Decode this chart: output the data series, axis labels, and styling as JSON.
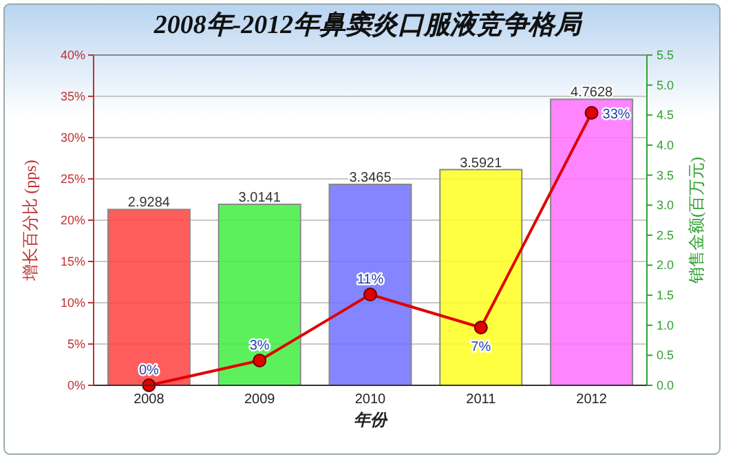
{
  "chart_data": {
    "type": "bar",
    "title": "2008年-2012年鼻窦炎口服液竞争格局",
    "xlabel": "年份",
    "ylabel": "增长百分比 (pps)",
    "y2label": "销售金额(百万元)",
    "categories": [
      "2008",
      "2009",
      "2010",
      "2011",
      "2012"
    ],
    "series": [
      {
        "axis": "y2",
        "colors": [
          "#ff4040",
          "#40ee40",
          "#7070ff",
          "#ffff20",
          "#ff70ff"
        ],
        "values": [
          2.9284,
          3.0141,
          3.3465,
          3.5921,
          4.7628
        ]
      },
      {
        "type": "line",
        "axis": "y",
        "color": "#e00000",
        "marker": "circle",
        "values": [
          0,
          3,
          11,
          7,
          33
        ],
        "value_labels": [
          "0%",
          "3%",
          "11%",
          "7%",
          "33%"
        ]
      }
    ],
    "data_labels": true,
    "ylim": [
      0,
      40
    ],
    "yticks": [
      {
        "value": 0,
        "label": "0%"
      },
      {
        "value": 5,
        "label": "5%"
      },
      {
        "value": 10,
        "label": "10%"
      },
      {
        "value": 15,
        "label": "15%"
      },
      {
        "value": 20,
        "label": "20%"
      },
      {
        "value": 25,
        "label": "25%"
      },
      {
        "value": 30,
        "label": "30%"
      },
      {
        "value": 35,
        "label": "35%"
      },
      {
        "value": 40,
        "label": "40%"
      }
    ],
    "y2lim": [
      0,
      5.5
    ],
    "y2ticks": [
      {
        "value": 0,
        "label": "0.0"
      },
      {
        "value": 0.5,
        "label": "0.5"
      },
      {
        "value": 1,
        "label": "1.0"
      },
      {
        "value": 1.5,
        "label": "1.5"
      },
      {
        "value": 2,
        "label": "2.0"
      },
      {
        "value": 2.5,
        "label": "2.5"
      },
      {
        "value": 3,
        "label": "3.0"
      },
      {
        "value": 3.5,
        "label": "3.5"
      },
      {
        "value": 4,
        "label": "4.0"
      },
      {
        "value": 4.5,
        "label": "4.5"
      },
      {
        "value": 5,
        "label": "5.0"
      },
      {
        "value": 5.5,
        "label": "5.5"
      }
    ],
    "grid": "y"
  }
}
